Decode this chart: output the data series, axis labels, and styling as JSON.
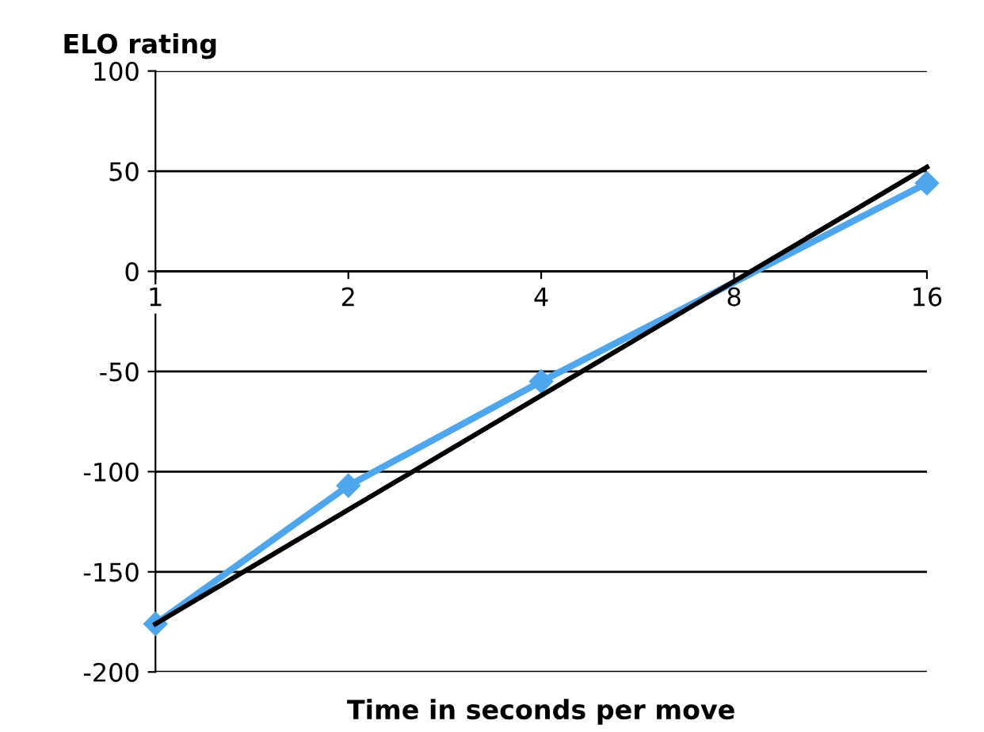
{
  "chart_data": {
    "type": "line",
    "ylabel": "ELO rating",
    "xlabel": "Time in seconds per move",
    "log": "x",
    "xlim": [
      1,
      16
    ],
    "xticks": [
      1,
      2,
      4,
      8,
      16
    ],
    "ylim": [
      -200,
      100
    ],
    "yticks": [
      -200,
      -150,
      -100,
      -50,
      0,
      50,
      100
    ],
    "grid": "y",
    "series": [
      {
        "color": "#4da6ee",
        "x": [
          1,
          2,
          4,
          16
        ],
        "values": [
          -176,
          -107,
          -55,
          44
        ],
        "marker": "diamond"
      },
      {
        "color": "#000000",
        "x": [
          1,
          16
        ],
        "values": [
          -176,
          52
        ],
        "marker": "none"
      }
    ]
  }
}
